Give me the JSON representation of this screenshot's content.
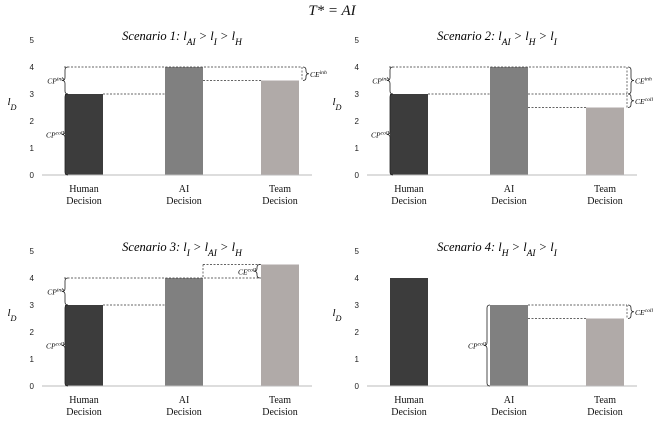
{
  "figure_title": "T* = AI",
  "chart_data": [
    {
      "type": "bar",
      "title": "Scenario 1: l_AI > l_I > l_H",
      "title_parts": {
        "prefix": "Scenario 1: ",
        "relation": "l_AI > l_I > l_H"
      },
      "categories": [
        [
          "Human",
          "Decision"
        ],
        [
          "AI",
          "Decision"
        ],
        [
          "Team",
          "Decision"
        ]
      ],
      "values": [
        3,
        4,
        3.5
      ],
      "bar_colors": [
        "#3c3c3c",
        "#808080",
        "#b0aaa8"
      ],
      "ylabel": "l_D",
      "ylim": [
        0,
        5
      ],
      "yticks": [
        0,
        1,
        2,
        3,
        4,
        5
      ],
      "reference_lines": [
        4,
        3,
        3.5
      ],
      "annotations": [
        {
          "label": "CP^inh",
          "from": 3,
          "to": 4,
          "side": "left"
        },
        {
          "label": "CP^coll",
          "from": 0,
          "to": 3,
          "side": "left"
        },
        {
          "label": "CE^inh",
          "from": 3.5,
          "to": 4,
          "side": "right"
        }
      ]
    },
    {
      "type": "bar",
      "title": "Scenario 2: l_AI > l_H > l_I",
      "title_parts": {
        "prefix": "Scenario 2: ",
        "relation": "l_AI > l_H > l_I"
      },
      "categories": [
        [
          "Human",
          "Decision"
        ],
        [
          "AI",
          "Decision"
        ],
        [
          "Team",
          "Decision"
        ]
      ],
      "values": [
        3,
        4,
        2.5
      ],
      "bar_colors": [
        "#3c3c3c",
        "#808080",
        "#b0aaa8"
      ],
      "ylabel": "l_D",
      "ylim": [
        0,
        5
      ],
      "yticks": [
        0,
        1,
        2,
        3,
        4,
        5
      ],
      "reference_lines": [
        4,
        3,
        2.5
      ],
      "annotations": [
        {
          "label": "CP^inh",
          "from": 3,
          "to": 4,
          "side": "left"
        },
        {
          "label": "CP^coll",
          "from": 0,
          "to": 3,
          "side": "left"
        },
        {
          "label": "CE^inh",
          "from": 3,
          "to": 4,
          "side": "right"
        },
        {
          "label": "CE^coll",
          "from": 2.5,
          "to": 3,
          "side": "right"
        }
      ]
    },
    {
      "type": "bar",
      "title": "Scenario 3: l_I > l_AI > l_H",
      "title_parts": {
        "prefix": "Scenario 3: ",
        "relation": "l_I > l_AI > l_H"
      },
      "categories": [
        [
          "Human",
          "Decision"
        ],
        [
          "AI",
          "Decision"
        ],
        [
          "Team",
          "Decision"
        ]
      ],
      "values": [
        3,
        4,
        4.5
      ],
      "bar_colors": [
        "#3c3c3c",
        "#808080",
        "#b0aaa8"
      ],
      "ylabel": "l_D",
      "ylim": [
        0,
        5
      ],
      "yticks": [
        0,
        1,
        2,
        3,
        4,
        5
      ],
      "reference_lines": [
        4,
        3,
        4.5
      ],
      "annotations": [
        {
          "label": "CP^inh",
          "from": 3,
          "to": 4,
          "side": "left"
        },
        {
          "label": "CP^coll",
          "from": 0,
          "to": 3,
          "side": "left"
        },
        {
          "label": "CE^coll",
          "from": 4,
          "to": 4.5,
          "side": "left-team"
        }
      ]
    },
    {
      "type": "bar",
      "title": "Scenario 4: l_H > l_AI > l_I",
      "title_parts": {
        "prefix": "Scenario 4: ",
        "relation": "l_H > l_AI > l_I"
      },
      "categories": [
        [
          "Human",
          "Decision"
        ],
        [
          "AI",
          "Decision"
        ],
        [
          "Team",
          "Decision"
        ]
      ],
      "values": [
        4,
        3,
        2.5
      ],
      "bar_colors": [
        "#3c3c3c",
        "#808080",
        "#b0aaa8"
      ],
      "ylabel": "l_D",
      "ylim": [
        0,
        5
      ],
      "yticks": [
        0,
        1,
        2,
        3,
        4,
        5
      ],
      "reference_lines": [
        3,
        2.5
      ],
      "annotations": [
        {
          "label": "CP^coll",
          "from": 0,
          "to": 3,
          "side": "left-ai"
        },
        {
          "label": "CE^coll",
          "from": 2.5,
          "to": 3,
          "side": "right"
        }
      ]
    }
  ]
}
